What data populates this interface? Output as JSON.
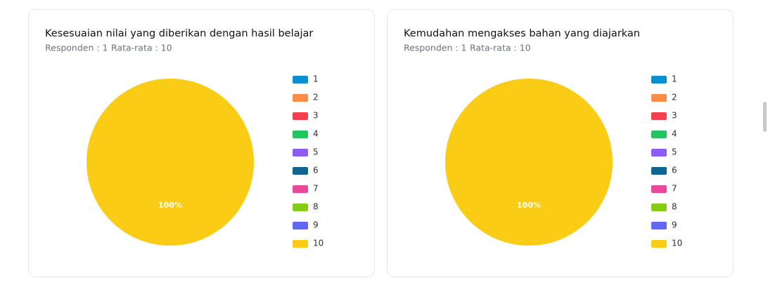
{
  "chart_data": [
    {
      "type": "pie",
      "title": "Kesesuaian nilai yang diberikan dengan hasil belajar",
      "respondents": "Responden : 1",
      "average": "Rata-rata : 10",
      "categories": [
        "1",
        "2",
        "3",
        "4",
        "5",
        "6",
        "7",
        "8",
        "9",
        "10"
      ],
      "values": [
        0,
        0,
        0,
        0,
        0,
        0,
        0,
        0,
        0,
        100
      ],
      "value_labels": [
        "0%",
        "0%",
        "0%",
        "0%",
        "0%",
        "0%",
        "0%",
        "0%",
        "0%",
        "100%"
      ],
      "colors": [
        "#0a8fd0",
        "#fb8c45",
        "#f43f4f",
        "#22c55e",
        "#8b5cf6",
        "#0e6690",
        "#ec4899",
        "#84cc16",
        "#6366f1",
        "#facc15"
      ],
      "legend": "right"
    },
    {
      "type": "pie",
      "title": "Kemudahan mengakses bahan yang diajarkan",
      "respondents": "Responden : 1",
      "average": "Rata-rata : 10",
      "categories": [
        "1",
        "2",
        "3",
        "4",
        "5",
        "6",
        "7",
        "8",
        "9",
        "10"
      ],
      "values": [
        0,
        0,
        0,
        0,
        0,
        0,
        0,
        0,
        0,
        100
      ],
      "value_labels": [
        "0%",
        "0%",
        "0%",
        "0%",
        "0%",
        "0%",
        "0%",
        "0%",
        "0%",
        "100%"
      ],
      "colors": [
        "#0a8fd0",
        "#fb8c45",
        "#f43f4f",
        "#22c55e",
        "#8b5cf6",
        "#0e6690",
        "#ec4899",
        "#84cc16",
        "#6366f1",
        "#facc15"
      ],
      "legend": "right"
    }
  ]
}
